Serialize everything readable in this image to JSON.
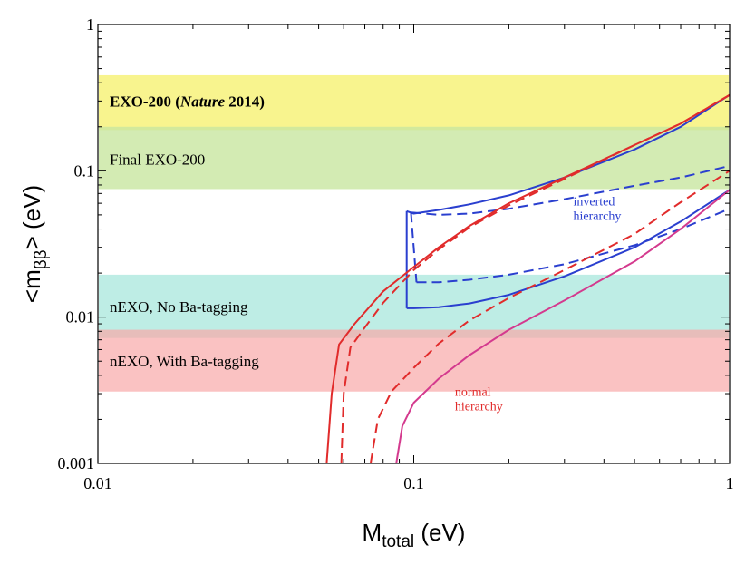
{
  "chart_data": {
    "type": "line",
    "x_scale": "log",
    "y_scale": "log",
    "xlim": [
      0.01,
      1
    ],
    "ylim": [
      0.001,
      1
    ],
    "xlabel": {
      "main": "M",
      "sub": "total",
      "unit": " (eV)"
    },
    "ylabel": {
      "pre": "<m",
      "sub": "ββ",
      "post": "> (eV)"
    },
    "x_ticks": [
      {
        "value": 0.01,
        "label": "0.01"
      },
      {
        "value": 0.1,
        "label": "0.1"
      },
      {
        "value": 1,
        "label": "1"
      }
    ],
    "y_ticks": [
      {
        "value": 0.001,
        "label": "0.001"
      },
      {
        "value": 0.01,
        "label": "0.01"
      },
      {
        "value": 0.1,
        "label": "0.1"
      },
      {
        "value": 1,
        "label": "1"
      }
    ],
    "bands": [
      {
        "id": "exo200-nature",
        "ymin": 0.19,
        "ymax": 0.45,
        "color": "#f7f27a",
        "opacity": 0.85,
        "label_parts": [
          {
            "text": "EXO-200 (",
            "italic": false
          },
          {
            "text": "Nature",
            "italic": true
          },
          {
            "text": " 2014)",
            "italic": false
          }
        ],
        "label_bold": true,
        "label_y": 0.3
      },
      {
        "id": "final-exo200",
        "ymin": 0.075,
        "ymax": 0.2,
        "color": "#c8e6a0",
        "opacity": 0.8,
        "label_parts": [
          {
            "text": "Final EXO-200",
            "italic": false
          }
        ],
        "label_bold": false,
        "label_y": 0.12
      },
      {
        "id": "nexo-no-ba",
        "ymin": 0.0072,
        "ymax": 0.0195,
        "color": "#aee9df",
        "opacity": 0.8,
        "label_parts": [
          {
            "text": "nEXO, No Ba-tagging",
            "italic": false
          }
        ],
        "label_bold": false,
        "label_y": 0.0118
      },
      {
        "id": "nexo-with-ba",
        "ymin": 0.0031,
        "ymax": 0.0082,
        "color": "#f8a8a8",
        "opacity": 0.7,
        "label_parts": [
          {
            "text": "nEXO, With Ba-tagging",
            "italic": false
          }
        ],
        "label_bold": false,
        "label_y": 0.005
      }
    ],
    "series": [
      {
        "hierarchy": "inverted",
        "kind": "solid-upper",
        "color": "#2a3fcf",
        "dash": false,
        "points": [
          [
            0.095,
            0.053
          ],
          [
            0.1,
            0.051
          ],
          [
            0.12,
            0.054
          ],
          [
            0.15,
            0.059
          ],
          [
            0.2,
            0.068
          ],
          [
            0.3,
            0.09
          ],
          [
            0.5,
            0.14
          ],
          [
            0.7,
            0.2
          ],
          [
            1.0,
            0.33
          ]
        ]
      },
      {
        "hierarchy": "inverted",
        "kind": "solid-lower",
        "color": "#2a3fcf",
        "dash": false,
        "points": [
          [
            0.095,
            0.0115
          ],
          [
            0.1,
            0.0115
          ],
          [
            0.12,
            0.0117
          ],
          [
            0.15,
            0.0124
          ],
          [
            0.2,
            0.0142
          ],
          [
            0.3,
            0.019
          ],
          [
            0.5,
            0.03
          ],
          [
            0.7,
            0.045
          ],
          [
            1.0,
            0.074
          ]
        ]
      },
      {
        "hierarchy": "inverted",
        "kind": "solid-left-edge",
        "color": "#2a3fcf",
        "dash": false,
        "points": [
          [
            0.095,
            0.0115
          ],
          [
            0.095,
            0.053
          ]
        ]
      },
      {
        "hierarchy": "inverted",
        "kind": "dashed-upper",
        "color": "#2a3fcf",
        "dash": true,
        "points": [
          [
            0.098,
            0.052
          ],
          [
            0.12,
            0.05
          ],
          [
            0.15,
            0.051
          ],
          [
            0.2,
            0.055
          ],
          [
            0.3,
            0.064
          ],
          [
            0.5,
            0.079
          ],
          [
            0.7,
            0.09
          ],
          [
            1.0,
            0.108
          ]
        ]
      },
      {
        "hierarchy": "inverted",
        "kind": "dashed-lower",
        "color": "#2a3fcf",
        "dash": true,
        "points": [
          [
            0.102,
            0.0173
          ],
          [
            0.12,
            0.0173
          ],
          [
            0.15,
            0.018
          ],
          [
            0.2,
            0.0195
          ],
          [
            0.3,
            0.023
          ],
          [
            0.5,
            0.031
          ],
          [
            0.7,
            0.04
          ],
          [
            1.0,
            0.055
          ]
        ]
      },
      {
        "hierarchy": "inverted",
        "kind": "dashed-left-edge",
        "color": "#2a3fcf",
        "dash": true,
        "points": [
          [
            0.098,
            0.052
          ],
          [
            0.102,
            0.0173
          ]
        ]
      },
      {
        "hierarchy": "normal",
        "kind": "solid-upper",
        "color": "#e12b2b",
        "dash": false,
        "points": [
          [
            0.053,
            0.001
          ],
          [
            0.055,
            0.003
          ],
          [
            0.058,
            0.0065
          ],
          [
            0.065,
            0.009
          ],
          [
            0.08,
            0.015
          ],
          [
            0.1,
            0.022
          ],
          [
            0.12,
            0.03
          ],
          [
            0.15,
            0.042
          ],
          [
            0.2,
            0.06
          ],
          [
            0.3,
            0.09
          ],
          [
            0.5,
            0.15
          ],
          [
            0.7,
            0.21
          ],
          [
            1.0,
            0.33
          ]
        ]
      },
      {
        "hierarchy": "normal",
        "kind": "dashed-upper",
        "color": "#e12b2b",
        "dash": true,
        "points": [
          [
            0.059,
            0.001
          ],
          [
            0.06,
            0.003
          ],
          [
            0.063,
            0.0062
          ],
          [
            0.07,
            0.0085
          ],
          [
            0.08,
            0.0125
          ],
          [
            0.1,
            0.021
          ],
          [
            0.12,
            0.029
          ],
          [
            0.15,
            0.041
          ],
          [
            0.2,
            0.058
          ],
          [
            0.3,
            0.088
          ],
          [
            0.5,
            0.15
          ],
          [
            0.7,
            0.21
          ],
          [
            1.0,
            0.33
          ]
        ]
      },
      {
        "hierarchy": "normal",
        "kind": "dashed-lower",
        "color": "#e12b2b",
        "dash": true,
        "points": [
          [
            0.073,
            0.001
          ],
          [
            0.077,
            0.002
          ],
          [
            0.085,
            0.0031
          ],
          [
            0.1,
            0.0045
          ],
          [
            0.12,
            0.0066
          ],
          [
            0.15,
            0.0095
          ],
          [
            0.2,
            0.0135
          ],
          [
            0.3,
            0.021
          ],
          [
            0.5,
            0.037
          ],
          [
            0.7,
            0.061
          ],
          [
            1.0,
            0.1
          ]
        ]
      },
      {
        "hierarchy": "normal",
        "kind": "solid-lower",
        "color": "#d43a8e",
        "dash": false,
        "points": [
          [
            0.088,
            0.001
          ],
          [
            0.092,
            0.0018
          ],
          [
            0.1,
            0.0026
          ],
          [
            0.12,
            0.0038
          ],
          [
            0.15,
            0.0055
          ],
          [
            0.2,
            0.0082
          ],
          [
            0.3,
            0.013
          ],
          [
            0.5,
            0.024
          ],
          [
            0.7,
            0.04
          ],
          [
            1.0,
            0.074
          ]
        ]
      }
    ],
    "annotations": [
      {
        "id": "inverted-label",
        "lines": [
          "inverted",
          "hierarchy"
        ],
        "x": 0.32,
        "y": 0.058,
        "color": "#2a3fcf"
      },
      {
        "id": "normal-label",
        "lines": [
          "normal",
          "hierarchy"
        ],
        "x": 0.135,
        "y": 0.0029,
        "color": "#e12b2b"
      }
    ]
  }
}
